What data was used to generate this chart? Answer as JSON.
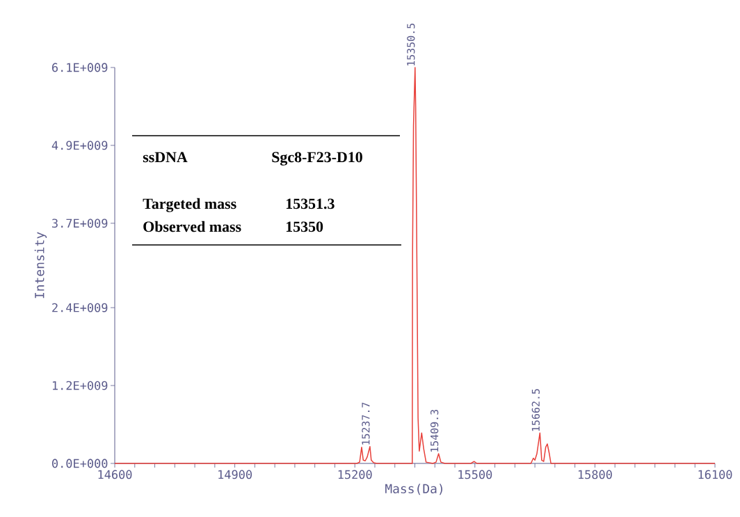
{
  "chart_data": {
    "type": "line",
    "xlabel": "Mass(Da)",
    "ylabel": "Intensity",
    "xlim": [
      14600,
      16100
    ],
    "xticks": [
      14600,
      14900,
      15200,
      15500,
      15800,
      16100
    ],
    "ylim": [
      0,
      6100000000
    ],
    "yticks": [
      {
        "value": 0,
        "label": "0.0E+000"
      },
      {
        "value": 1200000000,
        "label": "1.2E+009"
      },
      {
        "value": 2400000000,
        "label": "2.4E+009"
      },
      {
        "value": 3700000000,
        "label": "3.7E+009"
      },
      {
        "value": 4900000000,
        "label": "4.9E+009"
      },
      {
        "value": 6100000000,
        "label": "6.1E+009"
      }
    ],
    "series": [
      {
        "color": "#e8403a",
        "x": [
          14600,
          15205,
          15212,
          15217,
          15221,
          15226,
          15231,
          15237.7,
          15241,
          15247,
          15255,
          15343.5,
          15344.2,
          15346.6,
          15350.5,
          15352,
          15355.7,
          15358,
          15361,
          15367,
          15372,
          15378,
          15395,
          15403,
          15409.3,
          15415,
          15425,
          15490,
          15498,
          15505,
          15640,
          15646,
          15650,
          15655,
          15662.5,
          15667,
          15672,
          15677,
          15681,
          15686,
          15690,
          16100
        ],
        "values": [
          0,
          0,
          20000000,
          250000000,
          50000000,
          40000000,
          100000000,
          260000000,
          50000000,
          10000000,
          0,
          0,
          3200000000,
          5200000000,
          6100000000,
          5500000000,
          2600000000,
          700000000,
          190000000,
          470000000,
          230000000,
          20000000,
          0,
          20000000,
          150000000,
          20000000,
          0,
          0,
          30000000,
          0,
          0,
          80000000,
          50000000,
          150000000,
          470000000,
          50000000,
          30000000,
          250000000,
          300000000,
          150000000,
          0,
          0
        ]
      }
    ],
    "annotations": [
      {
        "text": "15237.7",
        "x": 15237.7,
        "y": 260000000
      },
      {
        "text": "15350.5",
        "x": 15350.5,
        "y": 6100000000
      },
      {
        "text": "15409.3",
        "x": 15409.3,
        "y": 150000000
      },
      {
        "text": "15662.5",
        "x": 15662.5,
        "y": 470000000
      },
      "ssDNA",
      "Sgc8-F23-D10",
      "Targeted mass",
      "15351.3",
      "Observed mass",
      "15350"
    ]
  }
}
